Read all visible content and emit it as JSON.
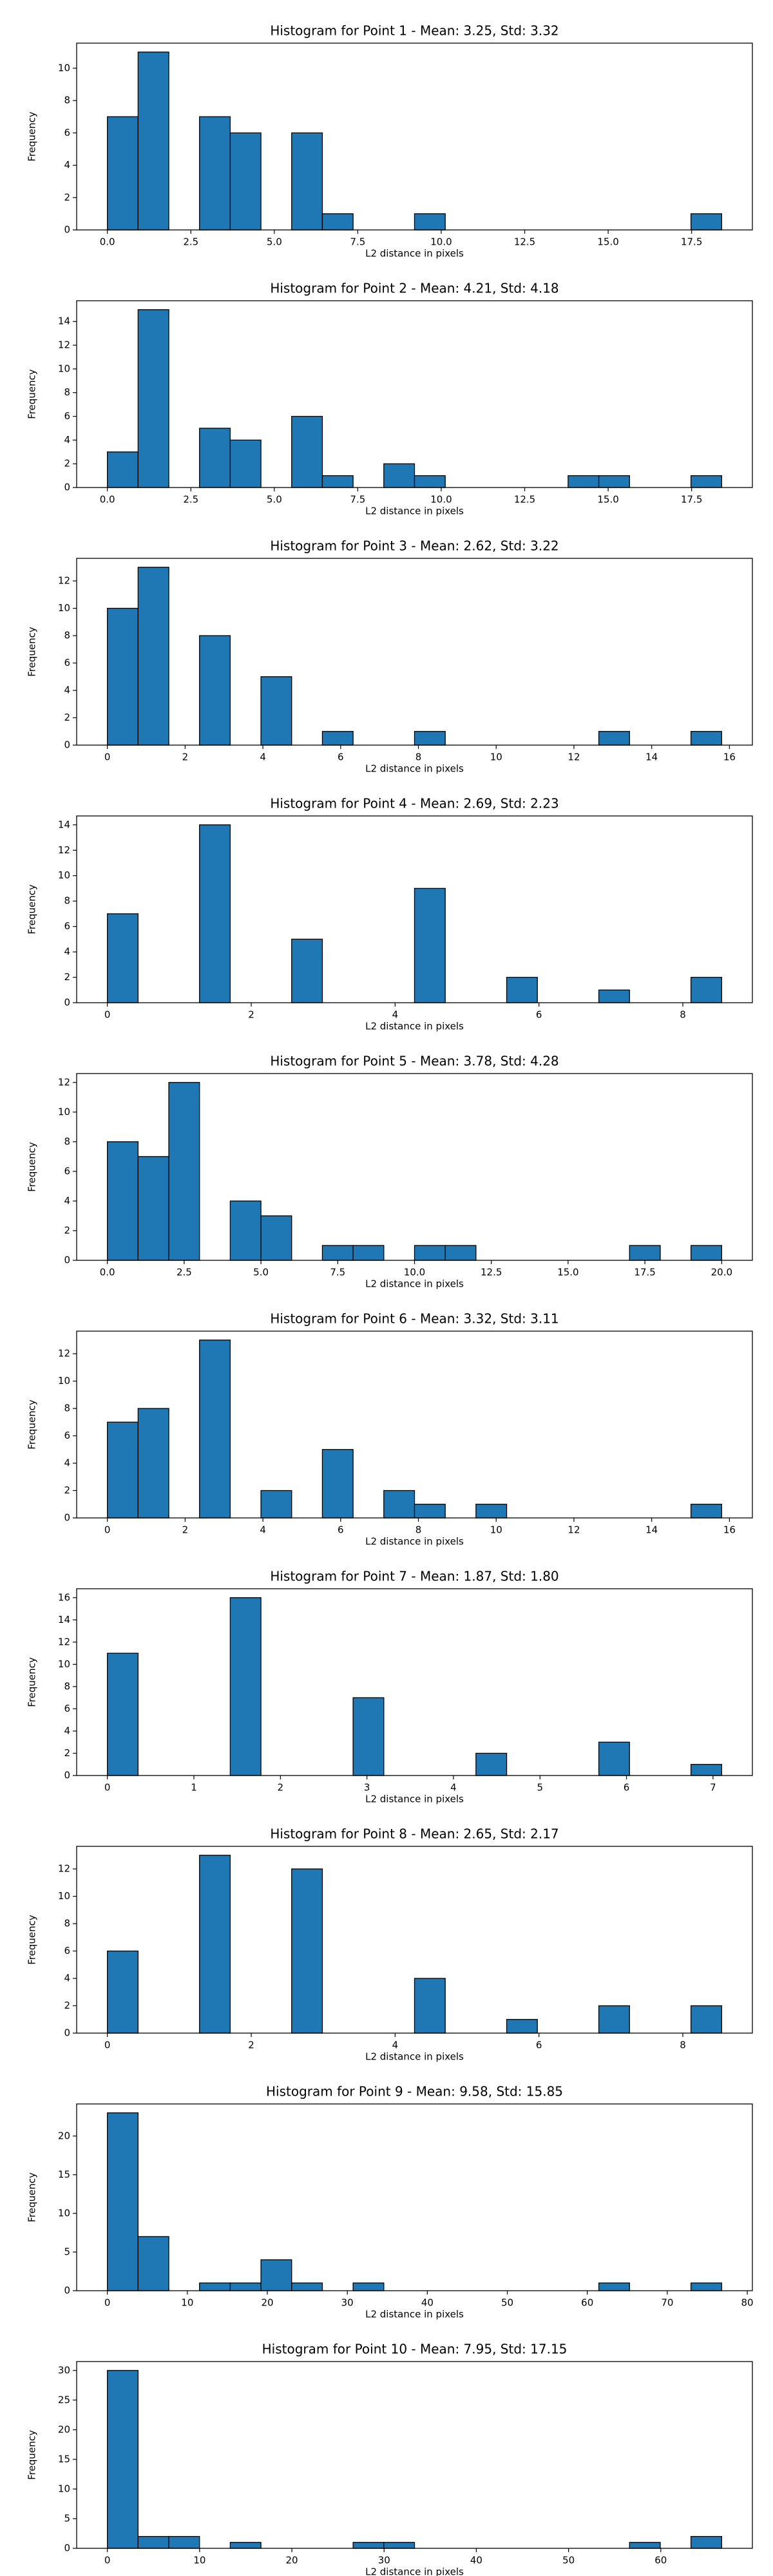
{
  "chart_data": [
    {
      "type": "histogram",
      "title": "Histogram for Point 1 - Mean: 3.25, Std: 3.32",
      "xlabel": "L2 distance in pixels",
      "ylabel": "Frequency",
      "color": "#1f77b4",
      "edgecolor": "#000000",
      "bins": [
        0,
        0.92,
        1.84,
        2.76,
        3.68,
        4.6,
        5.52,
        6.44,
        7.36,
        8.28,
        9.2,
        10.12,
        11.04,
        11.96,
        12.88,
        13.8,
        14.72,
        15.64,
        16.56,
        17.48,
        18.4
      ],
      "values": [
        7,
        11,
        0,
        7,
        6,
        0,
        6,
        1,
        0,
        0,
        1,
        0,
        0,
        0,
        0,
        0,
        0,
        0,
        0,
        1
      ],
      "xlim": [
        -0.92,
        19.32
      ],
      "ylim": [
        0,
        11.55
      ],
      "xticks": [
        {
          "value": 0,
          "label": "0.0"
        },
        2.5,
        {
          "value": 5,
          "label": "5.0"
        },
        7.5,
        {
          "value": 10,
          "label": "10.0"
        },
        12.5,
        {
          "value": 15,
          "label": "15.0"
        },
        17.5
      ],
      "yticks": [
        0,
        2,
        4,
        6,
        8,
        10
      ]
    },
    {
      "type": "histogram",
      "title": "Histogram for Point 2 - Mean: 4.21, Std: 4.18",
      "xlabel": "L2 distance in pixels",
      "ylabel": "Frequency",
      "color": "#1f77b4",
      "edgecolor": "#000000",
      "bins": [
        0,
        0.92,
        1.84,
        2.76,
        3.68,
        4.6,
        5.52,
        6.44,
        7.36,
        8.28,
        9.2,
        10.12,
        11.04,
        11.96,
        12.88,
        13.8,
        14.72,
        15.64,
        16.56,
        17.48,
        18.4
      ],
      "values": [
        3,
        15,
        0,
        5,
        4,
        0,
        6,
        1,
        0,
        2,
        1,
        0,
        0,
        0,
        0,
        1,
        1,
        0,
        0,
        1
      ],
      "xlim": [
        -0.92,
        19.32
      ],
      "ylim": [
        0,
        15.75
      ],
      "xticks": [
        {
          "value": 0,
          "label": "0.0"
        },
        2.5,
        {
          "value": 5,
          "label": "5.0"
        },
        7.5,
        {
          "value": 10,
          "label": "10.0"
        },
        12.5,
        {
          "value": 15,
          "label": "15.0"
        },
        17.5
      ],
      "yticks": [
        0,
        2,
        4,
        6,
        8,
        10,
        12,
        14
      ]
    },
    {
      "type": "histogram",
      "title": "Histogram for Point 3 - Mean: 2.62, Std: 3.22",
      "xlabel": "L2 distance in pixels",
      "ylabel": "Frequency",
      "color": "#1f77b4",
      "edgecolor": "#000000",
      "bins": [
        0,
        0.79,
        1.58,
        2.37,
        3.16,
        3.95,
        4.74,
        5.53,
        6.32,
        7.11,
        7.9,
        8.69,
        9.48,
        10.27,
        11.06,
        11.85,
        12.64,
        13.43,
        14.22,
        15.01,
        15.8
      ],
      "values": [
        10,
        13,
        0,
        8,
        0,
        5,
        0,
        1,
        0,
        0,
        1,
        0,
        0,
        0,
        0,
        0,
        1,
        0,
        0,
        1
      ],
      "xlim": [
        -0.79,
        16.59
      ],
      "ylim": [
        0,
        13.65
      ],
      "xticks": [
        0,
        2,
        4,
        6,
        8,
        10,
        12,
        14,
        16
      ],
      "yticks": [
        0,
        2,
        4,
        6,
        8,
        10,
        12
      ]
    },
    {
      "type": "histogram",
      "title": "Histogram for Point 4 - Mean: 2.69, Std: 2.23",
      "xlabel": "L2 distance in pixels",
      "ylabel": "Frequency",
      "color": "#1f77b4",
      "edgecolor": "#000000",
      "bins": [
        0,
        0.427,
        0.854,
        1.281,
        1.708,
        2.135,
        2.562,
        2.989,
        3.416,
        3.843,
        4.27,
        4.697,
        5.124,
        5.551,
        5.978,
        6.405,
        6.832,
        7.259,
        7.686,
        8.113,
        8.54
      ],
      "values": [
        7,
        0,
        0,
        14,
        0,
        0,
        5,
        0,
        0,
        0,
        9,
        0,
        0,
        2,
        0,
        0,
        1,
        0,
        0,
        2
      ],
      "xlim": [
        -0.427,
        8.967
      ],
      "ylim": [
        0,
        14.7
      ],
      "xticks": [
        0,
        2,
        4,
        6,
        8
      ],
      "yticks": [
        0,
        2,
        4,
        6,
        8,
        10,
        12,
        14
      ]
    },
    {
      "type": "histogram",
      "title": "Histogram for Point 5 - Mean: 3.78, Std: 4.28",
      "xlabel": "L2 distance in pixels",
      "ylabel": "Frequency",
      "color": "#1f77b4",
      "edgecolor": "#000000",
      "bins": [
        0,
        1,
        2,
        3,
        4,
        5,
        6,
        7,
        8,
        9,
        10,
        11,
        12,
        13,
        14,
        15,
        16,
        17,
        18,
        19,
        20
      ],
      "values": [
        8,
        7,
        12,
        0,
        4,
        3,
        0,
        1,
        1,
        0,
        1,
        1,
        0,
        0,
        0,
        0,
        0,
        1,
        0,
        1
      ],
      "xlim": [
        -1,
        21
      ],
      "ylim": [
        0,
        12.6
      ],
      "xticks": [
        {
          "value": 0,
          "label": "0.0"
        },
        2.5,
        {
          "value": 5,
          "label": "5.0"
        },
        7.5,
        {
          "value": 10,
          "label": "10.0"
        },
        12.5,
        {
          "value": 15,
          "label": "15.0"
        },
        17.5,
        {
          "value": 20,
          "label": "20.0"
        }
      ],
      "yticks": [
        0,
        2,
        4,
        6,
        8,
        10,
        12
      ]
    },
    {
      "type": "histogram",
      "title": "Histogram for Point 6 - Mean: 3.32, Std: 3.11",
      "xlabel": "L2 distance in pixels",
      "ylabel": "Frequency",
      "color": "#1f77b4",
      "edgecolor": "#000000",
      "bins": [
        0,
        0.79,
        1.58,
        2.37,
        3.16,
        3.95,
        4.74,
        5.53,
        6.32,
        7.11,
        7.9,
        8.69,
        9.48,
        10.27,
        11.06,
        11.85,
        12.64,
        13.43,
        14.22,
        15.01,
        15.8
      ],
      "values": [
        7,
        8,
        0,
        13,
        0,
        2,
        0,
        5,
        0,
        2,
        1,
        0,
        1,
        0,
        0,
        0,
        0,
        0,
        0,
        1
      ],
      "xlim": [
        -0.79,
        16.59
      ],
      "ylim": [
        0,
        13.65
      ],
      "xticks": [
        0,
        2,
        4,
        6,
        8,
        10,
        12,
        14,
        16
      ],
      "yticks": [
        0,
        2,
        4,
        6,
        8,
        10,
        12
      ]
    },
    {
      "type": "histogram",
      "title": "Histogram for Point 7 - Mean: 1.87, Std: 1.80",
      "xlabel": "L2 distance in pixels",
      "ylabel": "Frequency",
      "color": "#1f77b4",
      "edgecolor": "#000000",
      "bins": [
        0,
        0.355,
        0.71,
        1.065,
        1.42,
        1.775,
        2.13,
        2.485,
        2.84,
        3.195,
        3.55,
        3.905,
        4.26,
        4.615,
        4.97,
        5.325,
        5.68,
        6.035,
        6.39,
        6.745,
        7.1
      ],
      "values": [
        11,
        0,
        0,
        0,
        16,
        0,
        0,
        0,
        7,
        0,
        0,
        0,
        2,
        0,
        0,
        0,
        3,
        0,
        0,
        1
      ],
      "xlim": [
        -0.355,
        7.455
      ],
      "ylim": [
        0,
        16.8
      ],
      "xticks": [
        0,
        1,
        2,
        3,
        4,
        5,
        6,
        7
      ],
      "yticks": [
        0,
        2,
        4,
        6,
        8,
        10,
        12,
        14,
        16
      ]
    },
    {
      "type": "histogram",
      "title": "Histogram for Point 8 - Mean: 2.65, Std: 2.17",
      "xlabel": "L2 distance in pixels",
      "ylabel": "Frequency",
      "color": "#1f77b4",
      "edgecolor": "#000000",
      "bins": [
        0,
        0.427,
        0.854,
        1.281,
        1.708,
        2.135,
        2.562,
        2.989,
        3.416,
        3.843,
        4.27,
        4.697,
        5.124,
        5.551,
        5.978,
        6.405,
        6.832,
        7.259,
        7.686,
        8.113,
        8.54
      ],
      "values": [
        6,
        0,
        0,
        13,
        0,
        0,
        12,
        0,
        0,
        0,
        4,
        0,
        0,
        1,
        0,
        0,
        2,
        0,
        0,
        2
      ],
      "xlim": [
        -0.427,
        8.967
      ],
      "ylim": [
        0,
        13.65
      ],
      "xticks": [
        0,
        2,
        4,
        6,
        8
      ],
      "yticks": [
        0,
        2,
        4,
        6,
        8,
        10,
        12
      ]
    },
    {
      "type": "histogram",
      "title": "Histogram for Point 9 - Mean: 9.58, Std: 15.85",
      "xlabel": "L2 distance in pixels",
      "ylabel": "Frequency",
      "color": "#1f77b4",
      "edgecolor": "#000000",
      "bins": [
        0,
        3.84,
        7.68,
        11.52,
        15.36,
        19.2,
        23.04,
        26.88,
        30.72,
        34.56,
        38.4,
        42.24,
        46.08,
        49.92,
        53.76,
        57.6,
        61.44,
        65.28,
        69.12,
        72.96,
        76.8
      ],
      "values": [
        23,
        7,
        0,
        1,
        1,
        4,
        1,
        0,
        1,
        0,
        0,
        0,
        0,
        0,
        0,
        0,
        1,
        0,
        0,
        1
      ],
      "xlim": [
        -3.84,
        80.64
      ],
      "ylim": [
        0,
        24.15
      ],
      "xticks": [
        0,
        10,
        20,
        30,
        40,
        50,
        60,
        70,
        80
      ],
      "yticks": [
        0,
        5,
        10,
        15,
        20
      ]
    },
    {
      "type": "histogram",
      "title": "Histogram for Point 10 - Mean: 7.95, Std: 17.15",
      "xlabel": "L2 distance in pixels",
      "ylabel": "Frequency",
      "color": "#1f77b4",
      "edgecolor": "#000000",
      "bins": [
        0,
        3.33,
        6.66,
        9.99,
        13.32,
        16.65,
        19.98,
        23.31,
        26.64,
        29.97,
        33.3,
        36.63,
        39.96,
        43.29,
        46.62,
        49.95,
        53.28,
        56.61,
        59.94,
        63.27,
        66.6
      ],
      "values": [
        30,
        2,
        2,
        0,
        1,
        0,
        0,
        0,
        1,
        1,
        0,
        0,
        0,
        0,
        0,
        0,
        0,
        1,
        0,
        2
      ],
      "xlim": [
        -3.33,
        69.93
      ],
      "ylim": [
        0,
        31.5
      ],
      "xticks": [
        0,
        10,
        20,
        30,
        40,
        50,
        60
      ],
      "yticks": [
        0,
        5,
        10,
        15,
        20,
        25,
        30
      ]
    }
  ]
}
